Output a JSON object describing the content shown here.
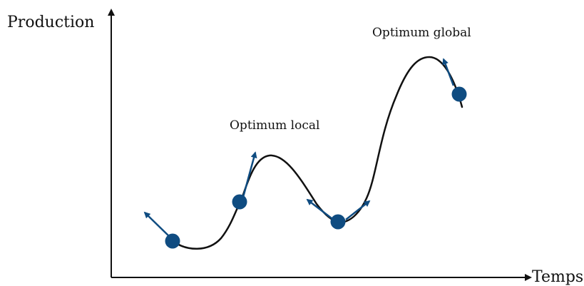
{
  "diagram": {
    "y_axis_label": "Production",
    "x_axis_label": "Temps",
    "annotations": {
      "local": "Optimum local",
      "global": "Optimum global"
    },
    "colors": {
      "curve": "#111111",
      "axes": "#111111",
      "point": "#0f4c81",
      "arrow": "#0f4c81"
    }
  }
}
